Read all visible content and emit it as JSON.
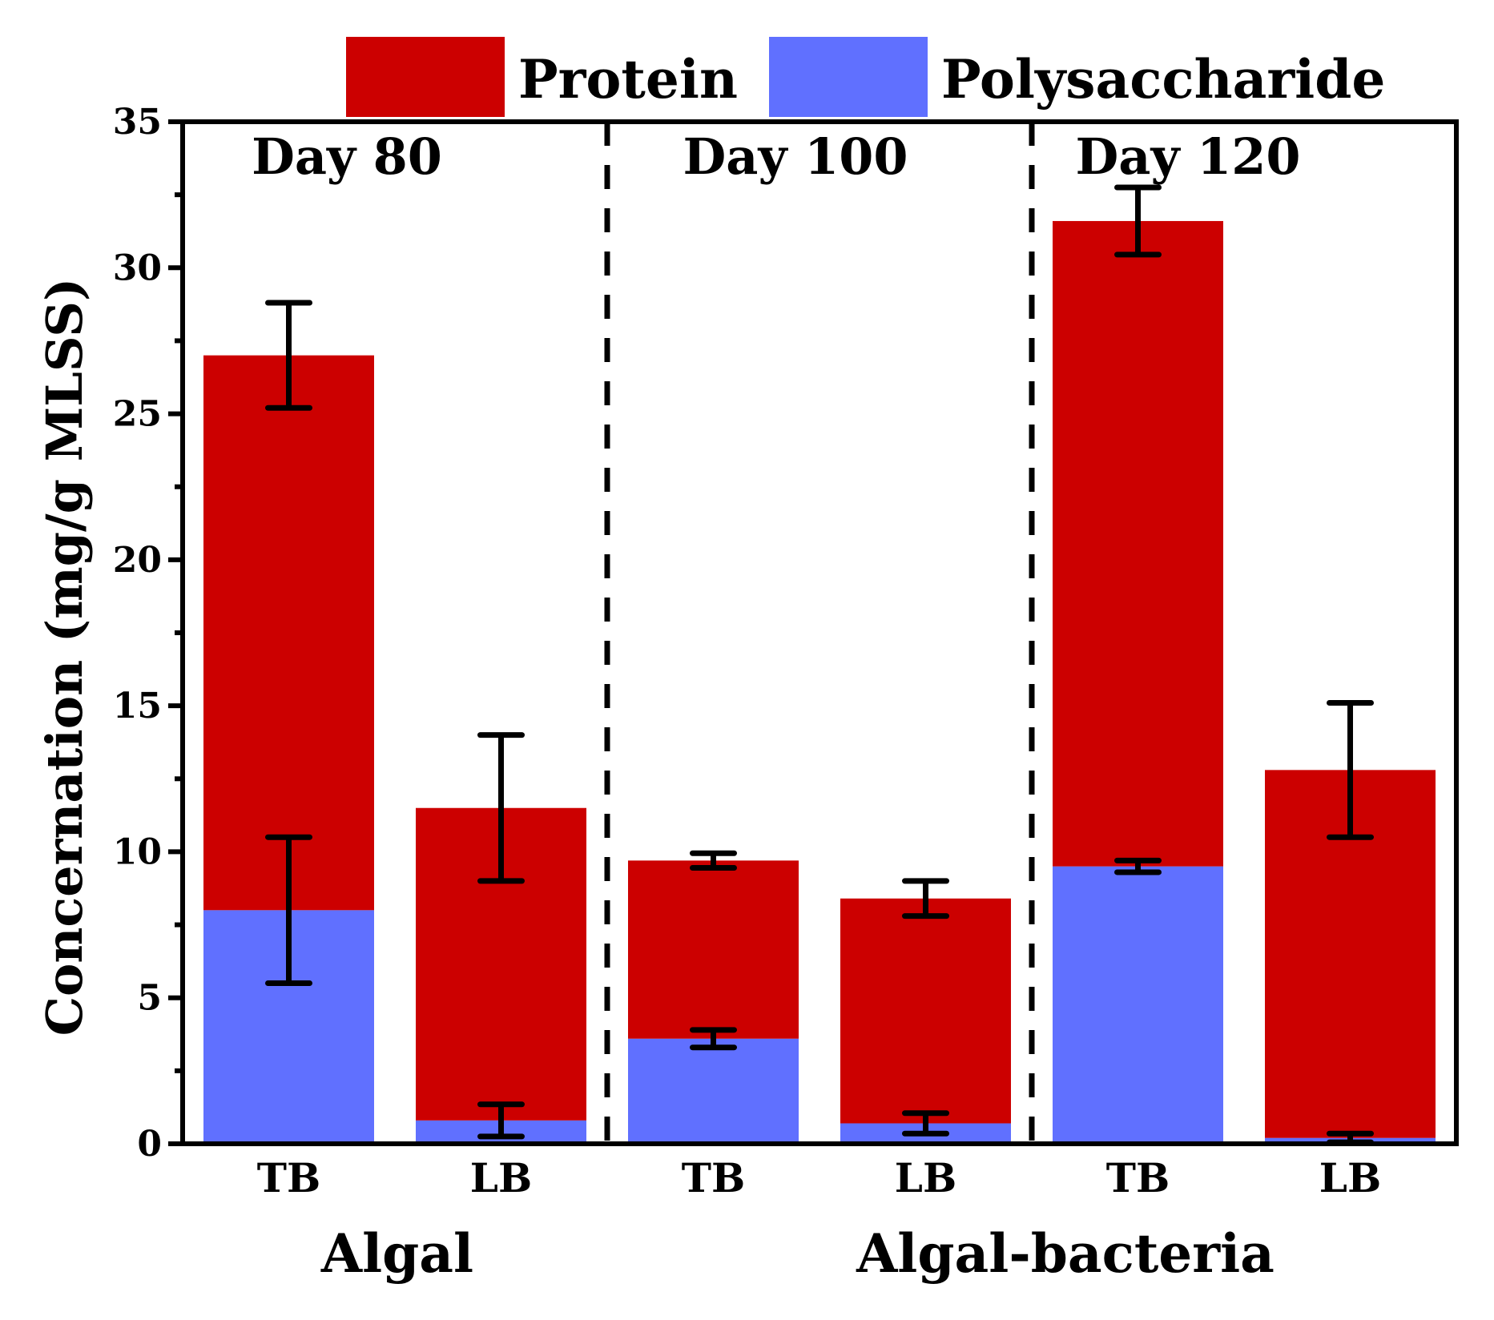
{
  "chart_data": {
    "type": "bar",
    "stacked": true,
    "title": "",
    "ylabel": "Concernation (mg/g MLSS)",
    "xlabel": "",
    "ylim": [
      0,
      35
    ],
    "yticks": [
      0,
      5,
      10,
      15,
      20,
      25,
      30,
      35
    ],
    "yminor_step": 2.5,
    "grid": false,
    "legend_position": "top",
    "categories": [
      "TB",
      "LB",
      "TB",
      "LB",
      "TB",
      "LB"
    ],
    "day_labels": [
      "Day 80",
      "Day 100",
      "Day 120"
    ],
    "group_labels": [
      "Algal",
      "Algal-bacteria"
    ],
    "series": [
      {
        "name": "Polysaccharide",
        "color": "#6070ff",
        "values": [
          8.0,
          0.8,
          3.6,
          0.7,
          9.5,
          0.2
        ],
        "errors": [
          2.5,
          0.55,
          0.3,
          0.35,
          0.2,
          0.15
        ]
      },
      {
        "name": "Protein",
        "color": "#cc0000",
        "values": [
          19.0,
          10.7,
          6.1,
          7.7,
          22.1,
          12.6
        ],
        "errors": [
          1.8,
          2.5,
          0.25,
          0.6,
          1.15,
          2.3
        ]
      }
    ]
  }
}
